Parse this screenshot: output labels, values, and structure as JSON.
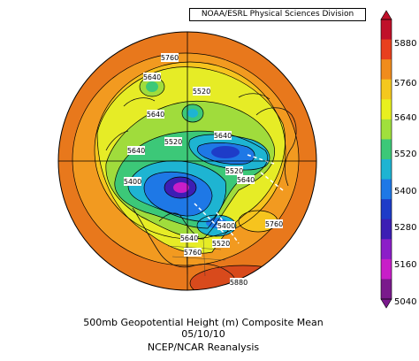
{
  "credit": "NOAA/ESRL Physical Sciences Division",
  "caption": {
    "line1": "500mb Geopotential Height (m) Composite Mean",
    "line2": "05/10/10",
    "line3": "NCEP/NCAR Reanalysis"
  },
  "colorbar": {
    "labels": [
      "5880",
      "5760",
      "5640",
      "5520",
      "5400",
      "5280",
      "5160",
      "5040"
    ],
    "colors": [
      "#c0102a",
      "#e8401e",
      "#f08c1c",
      "#f4c81e",
      "#e8f01e",
      "#a0e03c",
      "#3cc878",
      "#1eb4d2",
      "#1e78e6",
      "#1e3cc8",
      "#3c1eb4",
      "#8c1ec8",
      "#c81ec8",
      "#7a1a8c"
    ]
  },
  "contour_labels": [
    "5760",
    "5640",
    "5520",
    "5640",
    "5520",
    "5640",
    "5400",
    "5640",
    "5520",
    "5640",
    "5400",
    "5520",
    "5760",
    "5640",
    "5760",
    "5880"
  ]
}
